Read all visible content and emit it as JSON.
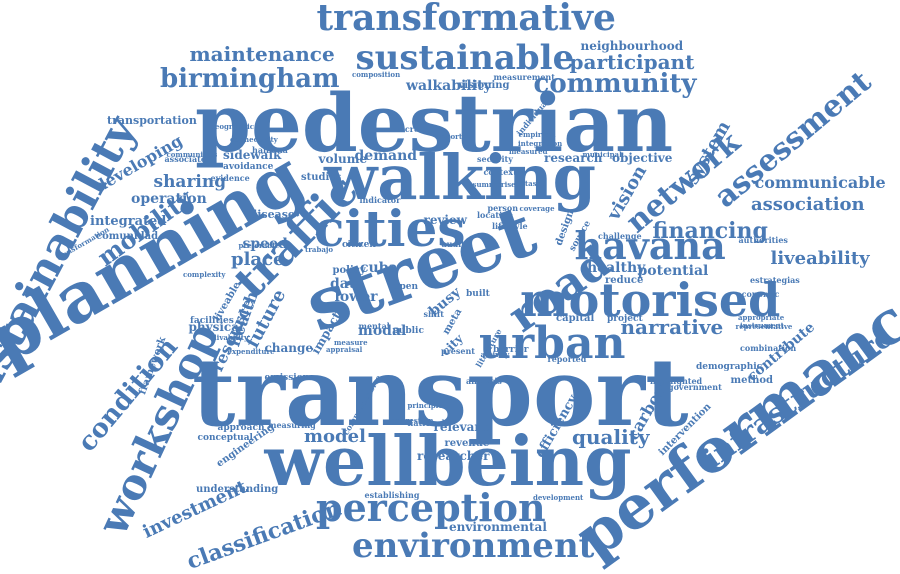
{
  "word_cloud": {
    "color": "#4a7ab5",
    "words": [
      "transport",
      "wellbeing",
      "pedestrian",
      "street",
      "walking",
      "planning",
      "cities",
      "urban",
      "road",
      "traffic",
      "motorised",
      "performance",
      "sustainability",
      "transformative",
      "sustainable",
      "infrastructure",
      "perception",
      "environment",
      "havana",
      "workshop",
      "classification",
      "assessment",
      "network",
      "birmingham",
      "community",
      "maintenance",
      "participant",
      "mobility",
      "investment",
      "model",
      "quality",
      "narrative",
      "financing",
      "association",
      "communicable",
      "liveability",
      "neighbourhood",
      "walkability",
      "visioning",
      "measurement",
      "transportation",
      "developing",
      "sharing",
      "operation",
      "integrated",
      "comunidad",
      "resource",
      "condition",
      "framework",
      "approach",
      "conceptual",
      "engineering",
      "understanding",
      "environmental",
      "establishing",
      "researcher",
      "revenue",
      "relevant",
      "efficiency",
      "carbon",
      "intervention",
      "contribute",
      "method",
      "demographic",
      "capital",
      "project",
      "potential",
      "healthy",
      "reduce",
      "economic",
      "estrategias",
      "authorities",
      "place",
      "speed",
      "health",
      "future",
      "disease",
      "physical",
      "change",
      "emission",
      "measuring",
      "impact",
      "data",
      "demand",
      "research",
      "objective",
      "volume",
      "sidewalk",
      "avoidance",
      "evidence",
      "studies",
      "review",
      "cuba",
      "lower",
      "policy",
      "public",
      "modal",
      "meta",
      "busy",
      "city",
      "design",
      "source",
      "system",
      "vision",
      "citizen",
      "indicator",
      "audit",
      "open",
      "shift",
      "built",
      "increase",
      "individual",
      "empirical",
      "integration",
      "measured",
      "security",
      "context",
      "summarise",
      "location",
      "dataset",
      "person",
      "coverage",
      "lifestyle",
      "facilities",
      "liveable",
      "livability",
      "expenditure",
      "national",
      "comprehensive",
      "congestion",
      "barrier",
      "activity",
      "mental",
      "measure",
      "present",
      "combination",
      "representative",
      "appropriate",
      "instrument",
      "municipal",
      "analysis",
      "principle",
      "government",
      "reported",
      "highlighted",
      "development",
      "associated",
      "communities",
      "geographic",
      "connectivity",
      "halbana",
      "preferable",
      "complexity",
      "transformation",
      "important",
      "composition",
      "trabajo",
      "appraisal",
      "challenge",
      "literature"
    ]
  }
}
